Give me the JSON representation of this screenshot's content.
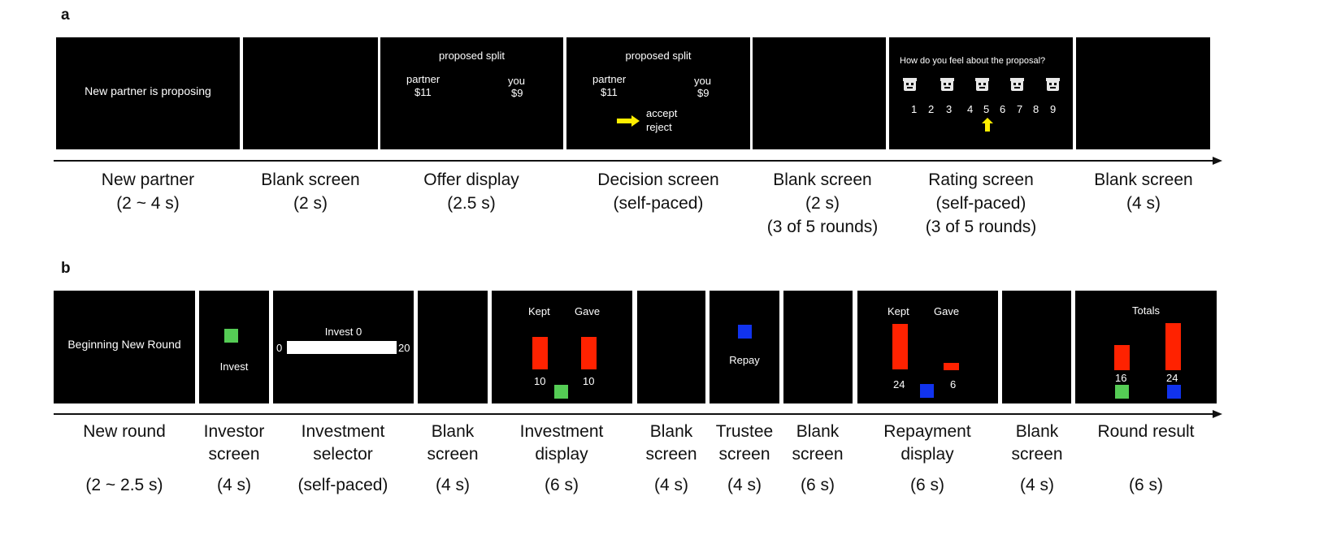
{
  "panel_a": {
    "label": "a",
    "screens": {
      "s1": "New partner is proposing",
      "offer": {
        "title": "proposed split",
        "partner_label": "partner",
        "partner_amount": "$11",
        "you_label": "you",
        "you_amount": "$9"
      },
      "decision": {
        "title": "proposed split",
        "partner_label": "partner",
        "partner_amount": "$11",
        "you_label": "you",
        "you_amount": "$9",
        "accept": "accept",
        "reject": "reject"
      },
      "rating": {
        "question": "How do you feel about the proposal?",
        "scale": [
          "1",
          "2",
          "3",
          "4",
          "5",
          "6",
          "7",
          "8",
          "9"
        ],
        "selected": "5",
        "faces": [
          "face-1",
          "face-2",
          "face-3",
          "face-4",
          "face-5"
        ]
      }
    },
    "captions": [
      {
        "title": "New partner",
        "dur": "(2 ~ 4 s)",
        "extra": ""
      },
      {
        "title": "Blank screen",
        "dur": "(2 s)",
        "extra": ""
      },
      {
        "title": "Offer display",
        "dur": "(2.5 s)",
        "extra": ""
      },
      {
        "title": "Decision screen",
        "dur": "(self-paced)",
        "extra": ""
      },
      {
        "title": "Blank screen",
        "dur": "(2 s)",
        "extra": "(3 of 5 rounds)"
      },
      {
        "title": "Rating screen",
        "dur": "(self-paced)",
        "extra": "(3 of 5 rounds)"
      },
      {
        "title": "Blank screen",
        "dur": "(4 s)",
        "extra": ""
      }
    ]
  },
  "panel_b": {
    "label": "b",
    "screens": {
      "new_round": "Beginning New Round",
      "investor": "Invest",
      "selector": {
        "title": "Invest 0",
        "min": "0",
        "max": "20"
      },
      "investment": {
        "kept": "Kept",
        "gave": "Gave",
        "kept_value": "10",
        "gave_value": "10"
      },
      "trustee": "Repay",
      "repayment": {
        "kept": "Kept",
        "gave": "Gave",
        "kept_value": "24",
        "gave_value": "6"
      },
      "result": {
        "title": "Totals",
        "left_value": "16",
        "right_value": "24"
      }
    },
    "captions": [
      {
        "l1": "New round",
        "l2": "",
        "dur": "(2 ~ 2.5 s)"
      },
      {
        "l1": "Investor",
        "l2": "screen",
        "dur": "(4 s)"
      },
      {
        "l1": "Investment",
        "l2": "selector",
        "dur": "(self-paced)"
      },
      {
        "l1": "Blank",
        "l2": "screen",
        "dur": "(4 s)"
      },
      {
        "l1": "Investment",
        "l2": "display",
        "dur": "(6 s)"
      },
      {
        "l1": "Blank",
        "l2": "screen",
        "dur": "(4 s)"
      },
      {
        "l1": "Trustee",
        "l2": "screen",
        "dur": "(4 s)"
      },
      {
        "l1": "Blank",
        "l2": "screen",
        "dur": "(6 s)"
      },
      {
        "l1": "Repayment",
        "l2": "display",
        "dur": "(6 s)"
      },
      {
        "l1": "Blank",
        "l2": "screen",
        "dur": "(4 s)"
      },
      {
        "l1": "Round result",
        "l2": "",
        "dur": "(6 s)"
      }
    ]
  },
  "colors": {
    "red": "#ff2200",
    "green": "#55cc55",
    "blue": "#1133ee",
    "yellow": "#ffee00",
    "screen": "#000000"
  }
}
